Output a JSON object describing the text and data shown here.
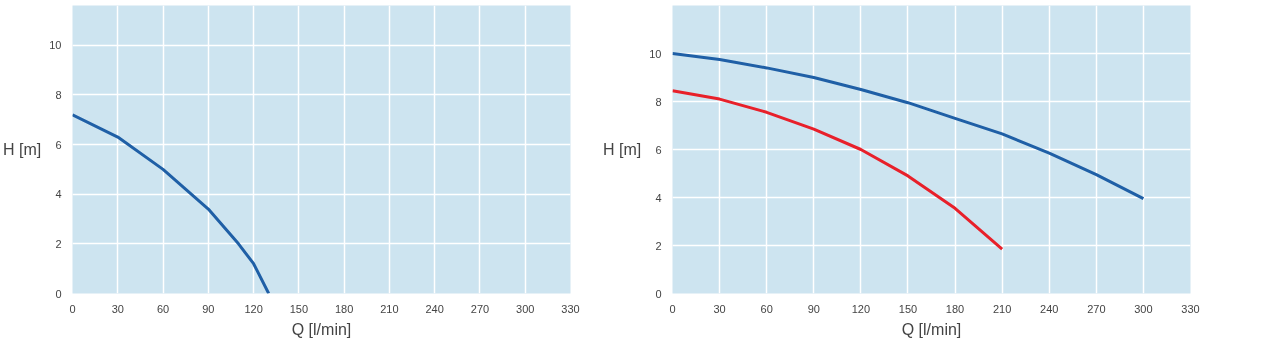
{
  "chart_data": [
    {
      "type": "line",
      "xlabel": "Q [l/min]",
      "ylabel": "H [m]",
      "xlim": [
        0,
        330
      ],
      "ylim": [
        0,
        11.6
      ],
      "xticks": [
        0,
        30,
        60,
        90,
        120,
        150,
        180,
        210,
        240,
        270,
        300,
        330
      ],
      "yticks": [
        0,
        2,
        4,
        6,
        8,
        10
      ],
      "grid": true,
      "series": [
        {
          "color": "#1f5fa6",
          "x": [
            0,
            30,
            60,
            90,
            110,
            120,
            130
          ],
          "values": [
            7.2,
            6.3,
            5.0,
            3.4,
            2.0,
            1.2,
            0
          ]
        }
      ]
    },
    {
      "type": "line",
      "xlabel": "Q [l/min]",
      "ylabel": "H [m]",
      "xlim": [
        0,
        330
      ],
      "ylim": [
        0,
        12
      ],
      "xticks": [
        0,
        30,
        60,
        90,
        120,
        150,
        180,
        210,
        240,
        270,
        300,
        330
      ],
      "yticks": [
        0,
        2,
        4,
        6,
        8,
        10
      ],
      "grid": true,
      "series": [
        {
          "color": "#1f5fa6",
          "x": [
            0,
            30,
            60,
            90,
            120,
            150,
            180,
            210,
            240,
            270,
            300
          ],
          "values": [
            10,
            9.75,
            9.4,
            9.0,
            8.5,
            7.95,
            7.3,
            6.65,
            5.85,
            4.95,
            3.95
          ]
        },
        {
          "color": "#e8202a",
          "x": [
            0,
            30,
            60,
            90,
            120,
            150,
            180,
            210
          ],
          "values": [
            8.45,
            8.1,
            7.55,
            6.85,
            6.0,
            4.9,
            3.55,
            1.85
          ]
        }
      ]
    }
  ]
}
